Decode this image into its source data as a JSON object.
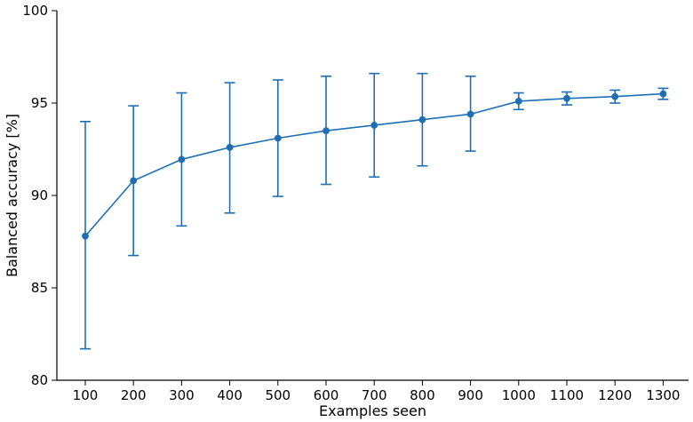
{
  "chart_data": {
    "type": "line",
    "title": "",
    "xlabel": "Examples seen",
    "ylabel": "Balanced accuracy [%]",
    "x": [
      100,
      200,
      300,
      400,
      500,
      600,
      700,
      800,
      900,
      1000,
      1100,
      1200,
      1300
    ],
    "xticks": [
      "100",
      "200",
      "300",
      "400",
      "500",
      "600",
      "700",
      "800",
      "900",
      "1000",
      "1100",
      "1200",
      "1300"
    ],
    "ylim": [
      80,
      100
    ],
    "yticks": [
      "80",
      "85",
      "90",
      "95",
      "100"
    ],
    "grid": false,
    "color": "#1f6fb4",
    "series": [
      {
        "values": [
          87.8,
          90.8,
          91.95,
          92.6,
          93.1,
          93.5,
          93.8,
          94.1,
          94.4,
          95.1,
          95.25,
          95.35,
          95.5
        ],
        "err_low": [
          81.7,
          86.75,
          88.35,
          89.05,
          89.95,
          90.6,
          91.0,
          91.6,
          92.4,
          94.65,
          94.9,
          95.0,
          95.2
        ],
        "err_high": [
          94.0,
          94.85,
          95.55,
          96.1,
          96.25,
          96.45,
          96.6,
          96.6,
          96.45,
          95.55,
          95.6,
          95.7,
          95.8
        ]
      }
    ]
  }
}
